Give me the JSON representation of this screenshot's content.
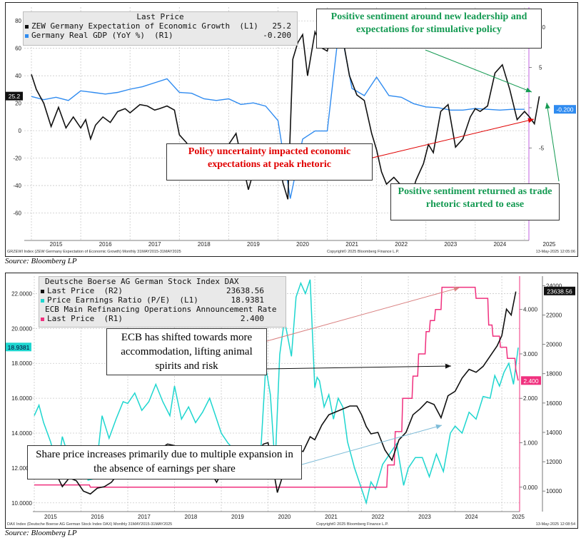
{
  "colors": {
    "zew": "#111111",
    "gdp": "#2f8bf0",
    "dax": "#111111",
    "pe": "#1ed6cf",
    "ecb": "#f0307e",
    "green": "#149a52",
    "red": "#e00000",
    "grid": "#c9c9c9"
  },
  "panel1": {
    "legend": {
      "title": "Last Price",
      "row1_name": "ZEW Germany Expectation of Economic Growth  (L1)",
      "row1_value": "25.2",
      "row2_name": "Germany Real GDP (YoY %)  (R1)",
      "row2_value": "-0.200"
    },
    "callouts": {
      "c1": "Positive sentiment around new leadership and expectations for stimulative policy",
      "c2": "Policy uncertainty impacted economic expectations at peak rhetoric",
      "c3": "Positive sentiment returned as trade rhetoric started to ease"
    },
    "footer_left": "GRZEWI Index (ZEW Germany Expectation of Economic Growth)  Monthly 31MAY2015-31MAY2025",
    "footer_center": "Copyright© 2025 Bloomberg Finance L.P.",
    "footer_right": "13-May-2025 12:05:06",
    "last_tag_left": "25.2",
    "last_tag_right": "-0.200"
  },
  "panel2": {
    "legend": {
      "title": "Deutsche Boerse AG German Stock Index DAX",
      "row1_name": "Last Price  (R2)",
      "row1_value": "23638.56",
      "row2_name": "Price Earnings Ratio (P/E)  (L1)",
      "row2_value": "18.9381",
      "title2": "ECB Main Refinancing Operations Announcement Rate",
      "row3_name": "Last Price  (R1)",
      "row3_value": "2.400"
    },
    "callouts": {
      "c1": "ECB has shifted towards more accommodation, lifting animal spirits and risk",
      "c2": "Share price increases primarily due to multiple expansion in the absence of earnings per share"
    },
    "footer_left": "DAX Index (Deutsche Boerse AG German Stock Index DAX)  Monthly 31MAY2015-31MAY2025",
    "footer_center": "Copyright© 2025 Bloomberg Finance L.P.",
    "footer_right": "13-May-2025 12:08:54",
    "last_tag_left": "18.9381",
    "last_tag_r1": "2.400",
    "last_tag_r2": "23638.56"
  },
  "source1": "Source: Bloomberg LP",
  "source2": "Source: Bloomberg LP",
  "chart_data": [
    {
      "type": "line",
      "x_ticks": [
        "2015",
        "2016",
        "2017",
        "2018",
        "2019",
        "2020",
        "2021",
        "2022",
        "2023",
        "2024",
        "2025"
      ],
      "x_range": [
        2015.0,
        2025.45
      ],
      "left_axis": {
        "ylim": [
          -80,
          90
        ],
        "ticks": [
          -60,
          -40,
          -20,
          0,
          20,
          40,
          60,
          80
        ]
      },
      "right_axis": {
        "ylim": [
          -16.5,
          12.5
        ],
        "ticks": [
          -10,
          -5,
          0,
          5,
          10
        ],
        "tick_labels": [
          "",
          "-5",
          "",
          "5",
          "10"
        ]
      },
      "series": [
        {
          "name": "ZEW Germany Expectation of Economic Growth",
          "axis": "left",
          "x": [
            2015.0,
            2015.1,
            2015.25,
            2015.4,
            2015.55,
            2015.7,
            2015.85,
            2016.0,
            2016.1,
            2016.2,
            2016.3,
            2016.45,
            2016.6,
            2016.75,
            2016.9,
            2017.0,
            2017.2,
            2017.35,
            2017.5,
            2017.6,
            2017.75,
            2017.9,
            2018.0,
            2018.15,
            2018.3,
            2018.45,
            2018.6,
            2018.75,
            2018.9,
            2019.0,
            2019.15,
            2019.3,
            2019.4,
            2019.55,
            2019.65,
            2019.75,
            2019.9,
            2020.0,
            2020.1,
            2020.2,
            2020.3,
            2020.4,
            2020.5,
            2020.6,
            2020.75,
            2020.9,
            2021.0,
            2021.1,
            2021.2,
            2021.3,
            2021.45,
            2021.6,
            2021.75,
            2021.9,
            2022.0,
            2022.1,
            2022.2,
            2022.35,
            2022.5,
            2022.65,
            2022.8,
            2022.95,
            2023.05,
            2023.15,
            2023.3,
            2023.45,
            2023.6,
            2023.75,
            2023.9,
            2024.0,
            2024.1,
            2024.25,
            2024.4,
            2024.55,
            2024.7,
            2024.85,
            2025.0,
            2025.1,
            2025.2,
            2025.3
          ],
          "y": [
            41,
            30,
            20,
            3,
            17,
            2,
            10,
            2,
            8,
            -6,
            4,
            10,
            6,
            14,
            16,
            13,
            19,
            18,
            15,
            16,
            18,
            15,
            -3,
            -9,
            -24,
            -14,
            -17,
            -20,
            -12,
            -10,
            -2,
            -27,
            -43,
            -24,
            -22,
            -24,
            -27,
            -16,
            -38,
            -50,
            52,
            64,
            70,
            40,
            72,
            60,
            58,
            72,
            84,
            70,
            40,
            26,
            22,
            -2,
            -14,
            -30,
            -39,
            -34,
            -40,
            -53,
            -36,
            -24,
            -10,
            -16,
            14,
            19,
            -12,
            -6,
            10,
            16,
            14,
            18,
            42,
            48,
            30,
            8,
            14,
            10,
            5,
            25
          ]
        },
        {
          "name": "Germany Real GDP (YoY %)",
          "axis": "right",
          "x": [
            2015.0,
            2015.25,
            2015.5,
            2015.75,
            2016.0,
            2016.25,
            2016.5,
            2016.75,
            2017.0,
            2017.25,
            2017.5,
            2017.75,
            2018.0,
            2018.25,
            2018.5,
            2018.75,
            2019.0,
            2019.25,
            2019.5,
            2019.75,
            2020.0,
            2020.25,
            2020.5,
            2020.75,
            2021.0,
            2021.25,
            2021.5,
            2021.75,
            2022.0,
            2022.25,
            2022.5,
            2022.75,
            2023.0,
            2023.25,
            2023.5,
            2023.75,
            2024.0,
            2024.25,
            2024.5,
            2024.75,
            2025.0
          ],
          "y": [
            1.4,
            1.0,
            1.3,
            0.9,
            2.1,
            1.9,
            1.7,
            1.9,
            2.3,
            2.6,
            3.1,
            3.6,
            1.9,
            1.8,
            1.1,
            0.9,
            1.1,
            0.4,
            0.6,
            0.2,
            -1.6,
            -11.3,
            -3.9,
            -2.9,
            -2.9,
            10.5,
            2.4,
            1.5,
            3.8,
            1.5,
            1.3,
            0.5,
            0.1,
            0.0,
            -0.3,
            -0.3,
            -0.1,
            -0.2,
            -0.3,
            -0.2,
            -0.2
          ]
        }
      ]
    },
    {
      "type": "line",
      "x_ticks": [
        "2015",
        "2016",
        "2017",
        "2018",
        "2019",
        "2020",
        "2021",
        "2022",
        "2023",
        "2024",
        "2025"
      ],
      "x_range": [
        2015.0,
        2025.35
      ],
      "left_axis": {
        "ylim": [
          9.5,
          23.0
        ],
        "ticks": [
          10,
          12,
          14,
          16,
          18,
          20,
          22
        ],
        "tick_labels": [
          "10.0000",
          "12.0000",
          "14.0000",
          "16.0000",
          "18.0000",
          "20.0000",
          "22.0000"
        ]
      },
      "right1_axis": {
        "ylim": [
          -0.55,
          4.75
        ],
        "ticks": [
          0,
          1,
          2,
          3,
          4
        ],
        "tick_labels": [
          "0.000",
          "1.000",
          "2.000",
          "3.000",
          "4.000"
        ]
      },
      "right2_axis": {
        "ylim": [
          8600,
          24650
        ],
        "ticks": [
          10000,
          12000,
          14000,
          16000,
          18000,
          20000,
          22000,
          24000
        ]
      },
      "series": [
        {
          "name": "DAX Last Price",
          "axis": "right2",
          "x": [
            2015.0,
            2015.15,
            2015.3,
            2015.45,
            2015.6,
            2015.75,
            2015.9,
            2016.05,
            2016.2,
            2016.35,
            2016.5,
            2016.65,
            2016.8,
            2016.95,
            2017.1,
            2017.25,
            2017.4,
            2017.55,
            2017.7,
            2017.85,
            2018.0,
            2018.15,
            2018.3,
            2018.45,
            2018.6,
            2018.75,
            2018.9,
            2019.0,
            2019.15,
            2019.3,
            2019.45,
            2019.6,
            2019.75,
            2019.9,
            2020.0,
            2020.1,
            2020.2,
            2020.3,
            2020.45,
            2020.6,
            2020.75,
            2020.9,
            2021.0,
            2021.15,
            2021.3,
            2021.45,
            2021.6,
            2021.75,
            2021.9,
            2022.0,
            2022.1,
            2022.2,
            2022.35,
            2022.5,
            2022.65,
            2022.8,
            2022.95,
            2023.1,
            2023.25,
            2023.4,
            2023.55,
            2023.7,
            2023.85,
            2024.0,
            2024.15,
            2024.3,
            2024.45,
            2024.6,
            2024.75,
            2024.9,
            2025.0,
            2025.1,
            2025.2,
            2025.3
          ],
          "y": [
            11800,
            11200,
            11500,
            11300,
            10300,
            10900,
            10700,
            10000,
            9800,
            10200,
            10300,
            10600,
            11200,
            11500,
            11800,
            12400,
            12700,
            12100,
            12900,
            13200,
            13100,
            12500,
            12600,
            12400,
            12300,
            11400,
            10600,
            11200,
            11700,
            12000,
            12300,
            12000,
            12500,
            13200,
            13300,
            11700,
            9900,
            10900,
            12300,
            12800,
            12700,
            13700,
            13500,
            14500,
            15200,
            15400,
            15600,
            15800,
            15800,
            15200,
            14400,
            13900,
            14000,
            12800,
            12100,
            13500,
            14000,
            15200,
            15600,
            16100,
            15900,
            15000,
            16500,
            16800,
            17700,
            18300,
            18100,
            18500,
            19200,
            19900,
            20600,
            22400,
            22000,
            23600
          ]
        },
        {
          "name": "Price Earnings Ratio (P/E)",
          "axis": "left",
          "x": [
            2015.0,
            2015.1,
            2015.2,
            2015.35,
            2015.5,
            2015.6,
            2015.75,
            2015.9,
            2016.0,
            2016.15,
            2016.3,
            2016.45,
            2016.6,
            2016.75,
            2016.9,
            2017.0,
            2017.15,
            2017.3,
            2017.45,
            2017.6,
            2017.75,
            2017.9,
            2018.0,
            2018.15,
            2018.3,
            2018.45,
            2018.6,
            2018.75,
            2018.9,
            2019.0,
            2019.15,
            2019.3,
            2019.45,
            2019.6,
            2019.75,
            2019.85,
            2019.95,
            2020.05,
            2020.15,
            2020.25,
            2020.35,
            2020.5,
            2020.6,
            2020.7,
            2020.8,
            2020.9,
            2021.0,
            2021.05,
            2021.1,
            2021.2,
            2021.3,
            2021.4,
            2021.5,
            2021.6,
            2021.7,
            2021.85,
            2022.0,
            2022.1,
            2022.2,
            2022.3,
            2022.45,
            2022.6,
            2022.75,
            2022.9,
            2023.0,
            2023.15,
            2023.3,
            2023.45,
            2023.6,
            2023.75,
            2023.9,
            2024.0,
            2024.15,
            2024.3,
            2024.45,
            2024.6,
            2024.75,
            2024.85,
            2024.95,
            2025.05,
            2025.15,
            2025.25,
            2025.35
          ],
          "y": [
            15.0,
            15.6,
            14.6,
            13.5,
            12.0,
            13.8,
            12.5,
            12.7,
            13.2,
            11.3,
            11.4,
            15.0,
            13.7,
            14.8,
            15.8,
            15.7,
            16.3,
            15.3,
            15.8,
            16.8,
            15.8,
            15.0,
            16.7,
            14.8,
            15.5,
            14.6,
            15.2,
            16.0,
            14.8,
            14.0,
            13.4,
            13.0,
            12.3,
            12.3,
            12.1,
            13.2,
            17.8,
            16.2,
            12.1,
            18.5,
            20.5,
            18.4,
            21.8,
            22.6,
            22.0,
            22.8,
            16.6,
            17.2,
            17.0,
            15.5,
            16.2,
            14.8,
            16.0,
            15.5,
            13.5,
            12.0,
            10.8,
            10.0,
            11.2,
            10.8,
            12.2,
            12.8,
            13.4,
            11.0,
            12.0,
            12.6,
            12.6,
            11.5,
            12.8,
            11.8,
            14.0,
            14.4,
            14.0,
            15.2,
            14.8,
            16.1,
            16.0,
            17.3,
            16.7,
            17.5,
            18.0,
            16.8,
            18.9
          ]
        },
        {
          "name": "ECB Main Refinancing Rate",
          "axis": "right1",
          "x": [
            2015.0,
            2016.18,
            2016.2,
            2022.54,
            2022.56,
            2022.7,
            2022.72,
            2022.86,
            2022.88,
            2023.08,
            2023.1,
            2023.2,
            2023.22,
            2023.36,
            2023.38,
            2023.45,
            2023.47,
            2023.56,
            2023.58,
            2023.7,
            2023.72,
            2024.43,
            2024.45,
            2024.7,
            2024.72,
            2024.79,
            2024.81,
            2024.95,
            2024.97,
            2025.1,
            2025.12,
            2025.28,
            2025.3,
            2025.35
          ],
          "y": [
            0.05,
            0.05,
            0.0,
            0.0,
            0.5,
            0.5,
            1.25,
            1.25,
            2.0,
            2.0,
            2.5,
            2.5,
            3.0,
            3.0,
            3.5,
            3.5,
            3.75,
            3.75,
            4.0,
            4.0,
            4.5,
            4.5,
            4.25,
            4.25,
            3.65,
            3.65,
            3.4,
            3.4,
            3.15,
            3.15,
            2.9,
            2.9,
            2.65,
            2.4
          ]
        }
      ]
    }
  ]
}
